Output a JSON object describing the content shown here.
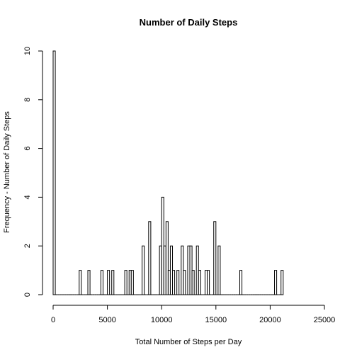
{
  "chart_data": {
    "type": "bar",
    "title": "Number of Daily Steps",
    "xlabel": "Total Number of Steps per Day",
    "ylabel": "Frequency - Number of Daily Steps",
    "xlim": [
      0,
      25000
    ],
    "ylim": [
      0,
      10
    ],
    "bin_width": 200,
    "x_ticks": [
      0,
      5000,
      10000,
      15000,
      20000,
      25000
    ],
    "y_ticks": [
      0,
      2,
      4,
      6,
      8,
      10
    ],
    "grid": false,
    "legend": "none",
    "bins": [
      {
        "x": 0,
        "count": 10
      },
      {
        "x": 2400,
        "count": 1
      },
      {
        "x": 3200,
        "count": 1
      },
      {
        "x": 4400,
        "count": 1
      },
      {
        "x": 5000,
        "count": 1
      },
      {
        "x": 5400,
        "count": 1
      },
      {
        "x": 6600,
        "count": 1
      },
      {
        "x": 7000,
        "count": 1
      },
      {
        "x": 7200,
        "count": 1
      },
      {
        "x": 8200,
        "count": 2
      },
      {
        "x": 8800,
        "count": 3
      },
      {
        "x": 9800,
        "count": 2
      },
      {
        "x": 10000,
        "count": 4
      },
      {
        "x": 10200,
        "count": 2
      },
      {
        "x": 10400,
        "count": 3
      },
      {
        "x": 10600,
        "count": 1
      },
      {
        "x": 10800,
        "count": 2
      },
      {
        "x": 11000,
        "count": 1
      },
      {
        "x": 11400,
        "count": 1
      },
      {
        "x": 11800,
        "count": 2
      },
      {
        "x": 12000,
        "count": 1
      },
      {
        "x": 12400,
        "count": 2
      },
      {
        "x": 12600,
        "count": 2
      },
      {
        "x": 12800,
        "count": 1
      },
      {
        "x": 13200,
        "count": 2
      },
      {
        "x": 13400,
        "count": 1
      },
      {
        "x": 14000,
        "count": 1
      },
      {
        "x": 14200,
        "count": 1
      },
      {
        "x": 14800,
        "count": 3
      },
      {
        "x": 15200,
        "count": 2
      },
      {
        "x": 17200,
        "count": 1
      },
      {
        "x": 20400,
        "count": 1
      },
      {
        "x": 21000,
        "count": 1
      }
    ]
  }
}
